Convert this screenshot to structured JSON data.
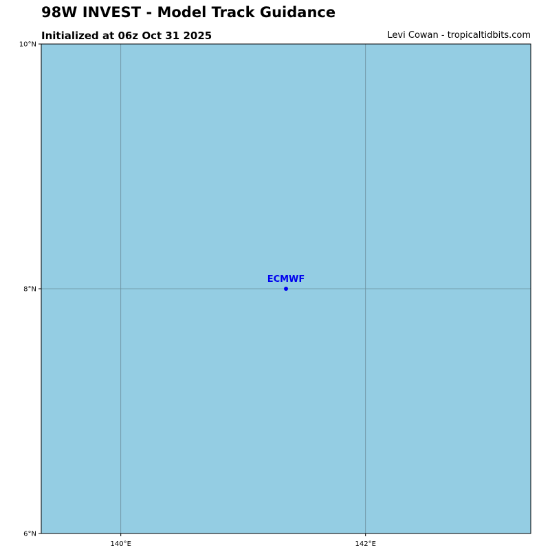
{
  "header": {
    "title": "98W INVEST - Model Track Guidance",
    "subtitle": "Initialized at 06z Oct 31 2025",
    "credit": "Levi Cowan - tropicaltidbits.com"
  },
  "map": {
    "lon_range": [
      139.35,
      143.35
    ],
    "lat_range": [
      6,
      10
    ],
    "ocean_color": "#94cde3",
    "grid_color": "#6b8e9a",
    "gridlines": true,
    "lon_ticks": [
      {
        "value": 140,
        "label": "140°E"
      },
      {
        "value": 142,
        "label": "142°E"
      }
    ],
    "lat_ticks": [
      {
        "value": 6,
        "label": "6°N"
      },
      {
        "value": 8,
        "label": "8°N"
      },
      {
        "value": 10,
        "label": "10°N"
      }
    ]
  },
  "tracks": [
    {
      "model": "ECMWF",
      "color": "#0000ee",
      "points": [
        {
          "lon": 141.35,
          "lat": 8.0
        }
      ]
    }
  ]
}
